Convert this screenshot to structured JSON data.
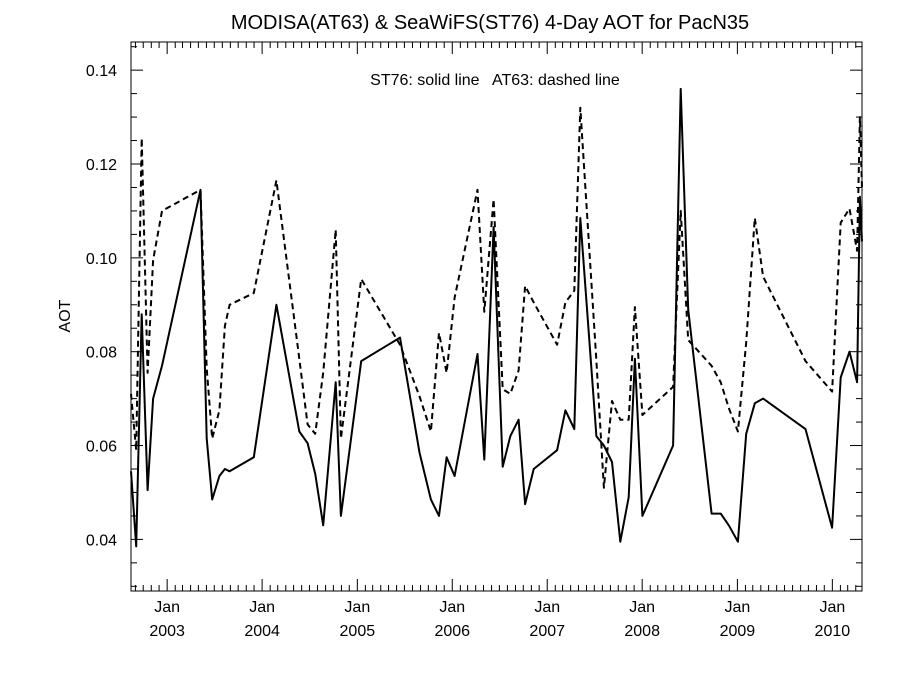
{
  "chart_data": {
    "type": "line",
    "title": "MODISA(AT63) & SeaWiFS(ST76) 4-Day AOT for PacN35",
    "ylabel": "AOT",
    "xlabel": "",
    "legend_text": "ST76: solid line   AT63: dashed line",
    "ylim": [
      0.029,
      0.146
    ],
    "xlim": [
      "2002-08-15",
      "2010-04-25"
    ],
    "y_ticks": [
      0.04,
      0.06,
      0.08,
      0.1,
      0.12,
      0.14
    ],
    "y_tick_labels": [
      "0.04",
      "0.06",
      "0.08",
      "0.10",
      "0.12",
      "0.14"
    ],
    "x_ticks": [
      {
        "date": "2003-01-01",
        "month": "Jan",
        "year": "2003"
      },
      {
        "date": "2004-01-01",
        "month": "Jan",
        "year": "2004"
      },
      {
        "date": "2005-01-01",
        "month": "Jan",
        "year": "2005"
      },
      {
        "date": "2006-01-01",
        "month": "Jan",
        "year": "2006"
      },
      {
        "date": "2007-01-01",
        "month": "Jan",
        "year": "2007"
      },
      {
        "date": "2008-01-01",
        "month": "Jan",
        "year": "2008"
      },
      {
        "date": "2009-01-01",
        "month": "Jan",
        "year": "2009"
      },
      {
        "date": "2010-01-01",
        "month": "Jan",
        "year": "2010"
      }
    ],
    "series": [
      {
        "name": "ST76",
        "style": "solid",
        "color": "#000000",
        "points": [
          [
            "2002-08-15",
            0.0545
          ],
          [
            "2002-09-04",
            0.0385
          ],
          [
            "2002-09-25",
            0.088
          ],
          [
            "2002-10-18",
            0.0505
          ],
          [
            "2002-11-08",
            0.07
          ],
          [
            "2002-12-12",
            0.077
          ],
          [
            "2003-05-09",
            0.1145
          ],
          [
            "2003-06-02",
            0.0615
          ],
          [
            "2003-06-23",
            0.0485
          ],
          [
            "2003-07-21",
            0.0535
          ],
          [
            "2003-08-11",
            0.055
          ],
          [
            "2003-08-29",
            0.0545
          ],
          [
            "2003-11-30",
            0.0575
          ],
          [
            "2004-02-25",
            0.09
          ],
          [
            "2004-05-23",
            0.063
          ],
          [
            "2004-06-24",
            0.0605
          ],
          [
            "2004-07-23",
            0.054
          ],
          [
            "2004-08-23",
            0.043
          ],
          [
            "2004-10-10",
            0.0735
          ],
          [
            "2004-10-30",
            0.045
          ],
          [
            "2005-01-16",
            0.078
          ],
          [
            "2005-06-14",
            0.083
          ],
          [
            "2005-08-28",
            0.0585
          ],
          [
            "2005-10-11",
            0.0485
          ],
          [
            "2005-11-11",
            0.045
          ],
          [
            "2005-12-10",
            0.0575
          ],
          [
            "2006-01-10",
            0.0535
          ],
          [
            "2006-04-08",
            0.0795
          ],
          [
            "2006-05-04",
            0.057
          ],
          [
            "2006-06-09",
            0.1065
          ],
          [
            "2006-07-14",
            0.0555
          ],
          [
            "2006-08-12",
            0.062
          ],
          [
            "2006-09-13",
            0.0655
          ],
          [
            "2006-10-08",
            0.0475
          ],
          [
            "2006-11-10",
            0.055
          ],
          [
            "2007-02-08",
            0.059
          ],
          [
            "2007-03-12",
            0.0675
          ],
          [
            "2007-04-15",
            0.0635
          ],
          [
            "2007-05-08",
            0.1085
          ],
          [
            "2007-07-09",
            0.062
          ],
          [
            "2007-08-07",
            0.06
          ],
          [
            "2007-09-07",
            0.0565
          ],
          [
            "2007-10-09",
            0.0395
          ],
          [
            "2007-11-10",
            0.049
          ],
          [
            "2007-12-04",
            0.0785
          ],
          [
            "2008-01-02",
            0.045
          ],
          [
            "2008-04-29",
            0.06
          ],
          [
            "2008-05-28",
            0.136
          ],
          [
            "2008-06-26",
            0.089
          ],
          [
            "2008-09-24",
            0.0455
          ],
          [
            "2008-10-29",
            0.0455
          ],
          [
            "2008-11-29",
            0.043
          ],
          [
            "2009-01-03",
            0.0395
          ],
          [
            "2009-02-04",
            0.0625
          ],
          [
            "2009-03-09",
            0.069
          ],
          [
            "2009-04-10",
            0.07
          ],
          [
            "2009-09-20",
            0.0635
          ],
          [
            "2009-12-31",
            0.0425
          ],
          [
            "2010-02-02",
            0.0745
          ],
          [
            "2010-03-08",
            0.08
          ],
          [
            "2010-04-06",
            0.0735
          ],
          [
            "2010-04-17",
            0.113
          ],
          [
            "2010-04-25",
            0.1035
          ]
        ]
      },
      {
        "name": "AT63",
        "style": "dashed",
        "color": "#000000",
        "points": [
          [
            "2002-08-15",
            0.071
          ],
          [
            "2002-09-04",
            0.059
          ],
          [
            "2002-09-25",
            0.1255
          ],
          [
            "2002-10-18",
            0.0755
          ],
          [
            "2002-11-08",
            0.0995
          ],
          [
            "2002-12-12",
            0.11
          ],
          [
            "2003-05-09",
            0.1145
          ],
          [
            "2003-06-02",
            0.0765
          ],
          [
            "2003-06-23",
            0.0615
          ],
          [
            "2003-07-21",
            0.0675
          ],
          [
            "2003-08-11",
            0.0855
          ],
          [
            "2003-08-29",
            0.09
          ],
          [
            "2003-11-30",
            0.0925
          ],
          [
            "2004-02-25",
            0.1165
          ],
          [
            "2004-05-23",
            0.0785
          ],
          [
            "2004-06-24",
            0.0645
          ],
          [
            "2004-07-23",
            0.0625
          ],
          [
            "2004-08-23",
            0.0755
          ],
          [
            "2004-10-10",
            0.106
          ],
          [
            "2004-10-30",
            0.0615
          ],
          [
            "2005-01-16",
            0.0955
          ],
          [
            "2005-06-14",
            0.0815
          ],
          [
            "2005-08-28",
            0.0705
          ],
          [
            "2005-10-11",
            0.063
          ],
          [
            "2005-11-11",
            0.084
          ],
          [
            "2005-12-10",
            0.0755
          ],
          [
            "2006-01-10",
            0.0915
          ],
          [
            "2006-04-08",
            0.1145
          ],
          [
            "2006-05-04",
            0.0885
          ],
          [
            "2006-06-09",
            0.1125
          ],
          [
            "2006-07-14",
            0.072
          ],
          [
            "2006-08-12",
            0.071
          ],
          [
            "2006-09-13",
            0.076
          ],
          [
            "2006-10-08",
            0.094
          ],
          [
            "2006-11-10",
            0.0905
          ],
          [
            "2007-02-08",
            0.0815
          ],
          [
            "2007-03-12",
            0.0905
          ],
          [
            "2007-04-15",
            0.093
          ],
          [
            "2007-05-08",
            0.132
          ],
          [
            "2007-07-09",
            0.078
          ],
          [
            "2007-08-07",
            0.051
          ],
          [
            "2007-09-07",
            0.0695
          ],
          [
            "2007-10-09",
            0.0655
          ],
          [
            "2007-11-10",
            0.0655
          ],
          [
            "2007-12-04",
            0.0895
          ],
          [
            "2008-01-02",
            0.0665
          ],
          [
            "2008-04-29",
            0.0725
          ],
          [
            "2008-05-28",
            0.11
          ],
          [
            "2008-06-26",
            0.0825
          ],
          [
            "2008-09-24",
            0.077
          ],
          [
            "2008-10-29",
            0.0735
          ],
          [
            "2008-11-29",
            0.068
          ],
          [
            "2009-01-03",
            0.063
          ],
          [
            "2009-02-04",
            0.082
          ],
          [
            "2009-03-09",
            0.1085
          ],
          [
            "2009-04-10",
            0.096
          ],
          [
            "2009-09-20",
            0.078
          ],
          [
            "2009-12-31",
            0.0715
          ],
          [
            "2010-02-02",
            0.1075
          ],
          [
            "2010-03-08",
            0.1105
          ],
          [
            "2010-04-06",
            0.1015
          ],
          [
            "2010-04-17",
            0.13
          ],
          [
            "2010-04-25",
            0.115
          ]
        ]
      }
    ],
    "grid": false,
    "legend_placement": "top-center"
  }
}
